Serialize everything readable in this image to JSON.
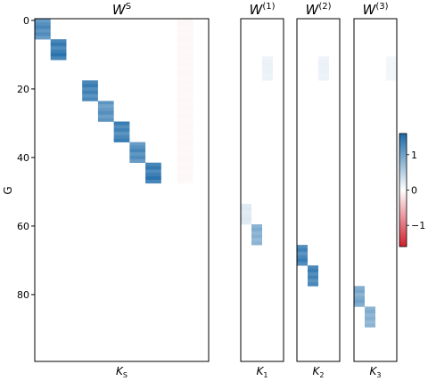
{
  "chart_data": {
    "type": "heatmap",
    "ylabel": "G",
    "y_range": [
      0,
      99
    ],
    "y_ticks": [
      "0",
      "20",
      "40",
      "60",
      "80"
    ],
    "colorbar": {
      "range": [
        -1.6,
        1.6
      ],
      "ticks": [
        "1",
        "0",
        "−1"
      ],
      "low_color": "#d21f2c",
      "mid_color": "#ffffff",
      "high_color": "#1c6aa8"
    },
    "panels": [
      {
        "title": "W",
        "title_sup": "S",
        "xlabel": "K",
        "xlabel_sub": "S",
        "n_cols": 11,
        "blocks": [
          {
            "col": 0,
            "row_start": 0,
            "row_end": 5,
            "value": 1.3
          },
          {
            "col": 1,
            "row_start": 6,
            "row_end": 11,
            "value": 1.5
          },
          {
            "col": 3,
            "row_start": 18,
            "row_end": 23,
            "value": 1.4
          },
          {
            "col": 4,
            "row_start": 24,
            "row_end": 29,
            "value": 1.2
          },
          {
            "col": 5,
            "row_start": 30,
            "row_end": 35,
            "value": 1.4
          },
          {
            "col": 6,
            "row_start": 36,
            "row_end": 41,
            "value": 1.3
          },
          {
            "col": 7,
            "row_start": 42,
            "row_end": 47,
            "value": 1.5
          },
          {
            "col": 9,
            "row_start": 0,
            "row_end": 47,
            "value": -0.06
          }
        ]
      },
      {
        "title": "W",
        "title_sup": "(1)",
        "xlabel": "K",
        "xlabel_sub": "1",
        "n_cols": 4,
        "blocks": [
          {
            "col": 2,
            "row_start": 11,
            "row_end": 17,
            "value": 0.15
          },
          {
            "col": 0,
            "row_start": 54,
            "row_end": 59,
            "value": 0.25
          },
          {
            "col": 1,
            "row_start": 60,
            "row_end": 65,
            "value": 0.9
          }
        ]
      },
      {
        "title": "W",
        "title_sup": "(2)",
        "xlabel": "K",
        "xlabel_sub": "2",
        "n_cols": 4,
        "blocks": [
          {
            "col": 2,
            "row_start": 11,
            "row_end": 17,
            "value": 0.15
          },
          {
            "col": 0,
            "row_start": 66,
            "row_end": 71,
            "value": 1.4
          },
          {
            "col": 1,
            "row_start": 72,
            "row_end": 77,
            "value": 1.4
          }
        ]
      },
      {
        "title": "W",
        "title_sup": "(3)",
        "xlabel": "K",
        "xlabel_sub": "3",
        "n_cols": 4,
        "blocks": [
          {
            "col": 3,
            "row_start": 11,
            "row_end": 17,
            "value": 0.1
          },
          {
            "col": 0,
            "row_start": 78,
            "row_end": 83,
            "value": 1.0
          },
          {
            "col": 1,
            "row_start": 84,
            "row_end": 89,
            "value": 0.9
          }
        ]
      }
    ]
  }
}
